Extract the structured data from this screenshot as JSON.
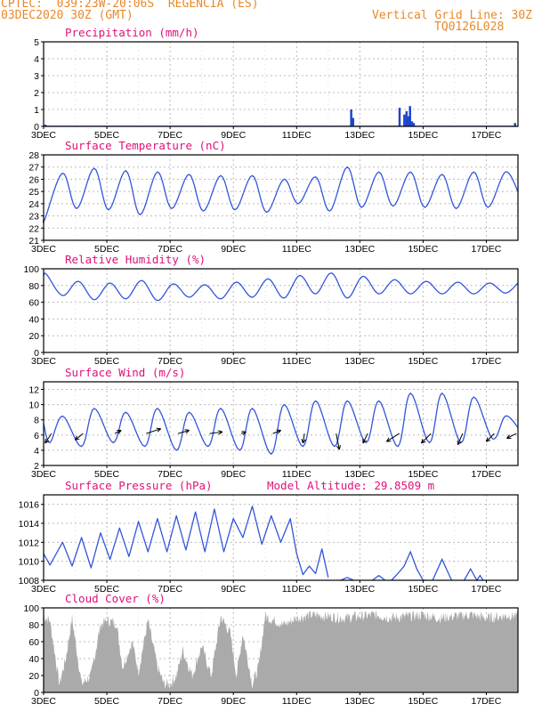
{
  "header": {
    "line1_left": "CPTEC:  039:23W-20:06S  REGENCIA (ES)",
    "line2_left": "03DEC2020 30Z (GMT)",
    "line2_right": "Vertical Grid Line: 30Z",
    "line3_right": "TQ0126L028"
  },
  "colors": {
    "header": "#e8892b",
    "title": "#e0107a",
    "line": "#3355dd",
    "bar": "#2244cc",
    "cloud": "#aaaaaa",
    "arrow": "#000000"
  },
  "chart_data": [
    {
      "type": "bar",
      "title": "Precipitation (mm/h)",
      "ylim": [
        0,
        5
      ],
      "yticks": [
        0,
        1,
        2,
        3,
        4,
        5
      ],
      "x_labels": [
        "3DEC",
        "5DEC",
        "7DEC",
        "9DEC",
        "11DEC",
        "13DEC",
        "15DEC",
        "17DEC"
      ],
      "x_label_days": [
        3,
        5,
        7,
        9,
        11,
        13,
        15,
        17
      ],
      "x_range_days": [
        3.0,
        18.0
      ],
      "grid": true,
      "events": [
        {
          "day": 3.05,
          "value": 0.1
        },
        {
          "day": 12.72,
          "value": 1.0
        },
        {
          "day": 12.78,
          "value": 0.5
        },
        {
          "day": 14.25,
          "value": 1.1
        },
        {
          "day": 14.4,
          "value": 0.7
        },
        {
          "day": 14.47,
          "value": 0.9
        },
        {
          "day": 14.52,
          "value": 0.6
        },
        {
          "day": 14.58,
          "value": 1.2
        },
        {
          "day": 14.64,
          "value": 0.3
        },
        {
          "day": 14.7,
          "value": 0.2
        },
        {
          "day": 17.9,
          "value": 0.2
        }
      ]
    },
    {
      "type": "line",
      "title": "Surface Temperature (nC)",
      "ylim": [
        21,
        28
      ],
      "yticks": [
        21,
        22,
        23,
        24,
        25,
        26,
        27,
        28
      ],
      "x_labels": [
        "3DEC",
        "5DEC",
        "7DEC",
        "9DEC",
        "11DEC",
        "13DEC",
        "15DEC",
        "17DEC"
      ],
      "x_label_days": [
        3,
        5,
        7,
        9,
        11,
        13,
        15,
        17
      ],
      "x_range_days": [
        3.0,
        18.0
      ],
      "grid": true,
      "peaks": [
        {
          "day": 3.6,
          "max": 26.5,
          "min": 22.8
        },
        {
          "day": 4.6,
          "max": 26.9,
          "min": 23.6
        },
        {
          "day": 5.6,
          "max": 26.7,
          "min": 23.5
        },
        {
          "day": 6.6,
          "max": 26.6,
          "min": 23.1
        },
        {
          "day": 7.6,
          "max": 26.4,
          "min": 23.6
        },
        {
          "day": 8.6,
          "max": 26.3,
          "min": 23.4
        },
        {
          "day": 9.6,
          "max": 26.3,
          "min": 23.5
        },
        {
          "day": 10.6,
          "max": 26.0,
          "min": 23.3
        },
        {
          "day": 11.6,
          "max": 26.2,
          "min": 24.0
        },
        {
          "day": 12.6,
          "max": 27.0,
          "min": 23.4
        },
        {
          "day": 13.6,
          "max": 26.6,
          "min": 23.7
        },
        {
          "day": 14.6,
          "max": 26.6,
          "min": 23.8
        },
        {
          "day": 15.6,
          "max": 26.4,
          "min": 23.7
        },
        {
          "day": 16.6,
          "max": 26.6,
          "min": 23.6
        },
        {
          "day": 17.6,
          "max": 26.6,
          "min": 23.7
        }
      ]
    },
    {
      "type": "line",
      "title": "Relative Humidity (%)",
      "ylim": [
        0,
        100
      ],
      "yticks": [
        0,
        20,
        40,
        60,
        80,
        100
      ],
      "x_labels": [
        "3DEC",
        "5DEC",
        "7DEC",
        "9DEC",
        "11DEC",
        "13DEC",
        "15DEC",
        "17DEC"
      ],
      "x_label_days": [
        3,
        5,
        7,
        9,
        11,
        13,
        15,
        17
      ],
      "x_range_days": [
        3.0,
        18.0
      ],
      "grid": true,
      "troughs": [
        {
          "day": 3.6,
          "min": 68,
          "max": 93
        },
        {
          "day": 4.6,
          "min": 63,
          "max": 85
        },
        {
          "day": 5.6,
          "min": 64,
          "max": 83
        },
        {
          "day": 6.6,
          "min": 62,
          "max": 86
        },
        {
          "day": 7.6,
          "min": 66,
          "max": 82
        },
        {
          "day": 8.6,
          "min": 64,
          "max": 81
        },
        {
          "day": 9.6,
          "min": 66,
          "max": 84
        },
        {
          "day": 10.6,
          "min": 65,
          "max": 88
        },
        {
          "day": 11.6,
          "min": 70,
          "max": 92
        },
        {
          "day": 12.6,
          "min": 65,
          "max": 95
        },
        {
          "day": 13.6,
          "min": 70,
          "max": 91
        },
        {
          "day": 14.6,
          "min": 70,
          "max": 87
        },
        {
          "day": 15.6,
          "min": 70,
          "max": 85
        },
        {
          "day": 16.6,
          "min": 70,
          "max": 84
        },
        {
          "day": 17.6,
          "min": 71,
          "max": 83
        }
      ]
    },
    {
      "type": "line",
      "title": "Surface Wind (m/s)",
      "ylim": [
        2,
        13
      ],
      "yticks": [
        2,
        4,
        6,
        8,
        10,
        12
      ],
      "x_labels": [
        "3DEC",
        "5DEC",
        "7DEC",
        "9DEC",
        "11DEC",
        "13DEC",
        "15DEC",
        "17DEC"
      ],
      "x_label_days": [
        3,
        5,
        7,
        9,
        11,
        13,
        15,
        17
      ],
      "x_range_days": [
        3.0,
        18.0
      ],
      "grid": true,
      "cycles": [
        {
          "day": 3.5,
          "min": 5.0,
          "max": 8.5
        },
        {
          "day": 4.5,
          "min": 4.5,
          "max": 9.5
        },
        {
          "day": 5.5,
          "min": 5.0,
          "max": 9.0
        },
        {
          "day": 6.5,
          "min": 4.5,
          "max": 9.5
        },
        {
          "day": 7.5,
          "min": 4.0,
          "max": 9.0
        },
        {
          "day": 8.5,
          "min": 4.5,
          "max": 9.5
        },
        {
          "day": 9.5,
          "min": 4.0,
          "max": 9.5
        },
        {
          "day": 10.5,
          "min": 3.5,
          "max": 10.0
        },
        {
          "day": 11.5,
          "min": 4.5,
          "max": 10.5
        },
        {
          "day": 12.5,
          "min": 4.5,
          "max": 10.5
        },
        {
          "day": 13.5,
          "min": 5.0,
          "max": 10.5
        },
        {
          "day": 14.5,
          "min": 4.5,
          "max": 11.5
        },
        {
          "day": 15.5,
          "min": 5.0,
          "max": 11.5
        },
        {
          "day": 16.5,
          "min": 5.0,
          "max": 11.0
        },
        {
          "day": 17.5,
          "min": 5.5,
          "max": 8.5
        }
      ],
      "vectors": [
        {
          "day": 3.25,
          "u": -2.0,
          "v": -3.0
        },
        {
          "day": 4.25,
          "u": -2.5,
          "v": -2.0
        },
        {
          "day": 5.25,
          "u": 2.0,
          "v": 1.0
        },
        {
          "day": 6.25,
          "u": 4.5,
          "v": 1.5
        },
        {
          "day": 7.25,
          "u": 3.5,
          "v": 1.0
        },
        {
          "day": 8.25,
          "u": 4.0,
          "v": 0.5
        },
        {
          "day": 9.25,
          "u": 1.5,
          "v": 0.5
        },
        {
          "day": 10.25,
          "u": 2.5,
          "v": 1.0
        },
        {
          "day": 11.25,
          "u": -0.5,
          "v": -3.0
        },
        {
          "day": 12.25,
          "u": 1.0,
          "v": -5.0
        },
        {
          "day": 13.25,
          "u": -1.5,
          "v": -3.0
        },
        {
          "day": 14.25,
          "u": -4.0,
          "v": -2.5
        },
        {
          "day": 15.25,
          "u": -3.0,
          "v": -3.0
        },
        {
          "day": 16.25,
          "u": -1.5,
          "v": -3.5
        },
        {
          "day": 17.25,
          "u": -2.5,
          "v": -2.5
        },
        {
          "day": 17.95,
          "u": -3.0,
          "v": -1.5
        }
      ]
    },
    {
      "type": "line",
      "title": "Surface Pressure (hPa)",
      "subtitle": "Model Altitude: 29.8509 m",
      "ylim": [
        1008,
        1017
      ],
      "yticks": [
        1008,
        1010,
        1012,
        1014,
        1016
      ],
      "x_labels": [
        "3DEC",
        "5DEC",
        "7DEC",
        "9DEC",
        "11DEC",
        "13DEC",
        "15DEC",
        "17DEC"
      ],
      "x_label_days": [
        3,
        5,
        7,
        9,
        11,
        13,
        15,
        17
      ],
      "x_range_days": [
        3.0,
        18.0
      ],
      "grid": true,
      "keypoints": [
        [
          3.0,
          1010.8
        ],
        [
          3.2,
          1009.6
        ],
        [
          3.6,
          1012.0
        ],
        [
          3.9,
          1009.5
        ],
        [
          4.2,
          1012.5
        ],
        [
          4.5,
          1009.3
        ],
        [
          4.8,
          1013.0
        ],
        [
          5.1,
          1010.2
        ],
        [
          5.4,
          1013.5
        ],
        [
          5.7,
          1010.5
        ],
        [
          6.0,
          1014.2
        ],
        [
          6.3,
          1011.0
        ],
        [
          6.6,
          1014.5
        ],
        [
          6.9,
          1011.0
        ],
        [
          7.2,
          1014.8
        ],
        [
          7.5,
          1011.2
        ],
        [
          7.8,
          1015.2
        ],
        [
          8.1,
          1011.0
        ],
        [
          8.4,
          1015.5
        ],
        [
          8.7,
          1011.0
        ],
        [
          9.0,
          1014.5
        ],
        [
          9.3,
          1012.5
        ],
        [
          9.6,
          1015.8
        ],
        [
          9.9,
          1011.8
        ],
        [
          10.2,
          1014.8
        ],
        [
          10.5,
          1012.0
        ],
        [
          10.8,
          1014.5
        ],
        [
          11.0,
          1010.8
        ],
        [
          11.2,
          1008.6
        ],
        [
          11.4,
          1009.5
        ],
        [
          11.6,
          1008.7
        ],
        [
          11.8,
          1011.3
        ],
        [
          12.0,
          1008.3
        ]
      ],
      "low_segments": [
        [
          [
            12.4,
            1007.8
          ],
          [
            12.6,
            1008.3
          ],
          [
            12.8,
            1007.8
          ]
        ],
        [
          [
            13.4,
            1007.8
          ],
          [
            13.6,
            1008.5
          ],
          [
            13.8,
            1007.8
          ]
        ],
        [
          [
            14.0,
            1007.8
          ],
          [
            14.2,
            1008.7
          ],
          [
            14.4,
            1009.5
          ],
          [
            14.6,
            1011.0
          ],
          [
            14.8,
            1009.2
          ],
          [
            15.0,
            1008.0
          ],
          [
            15.1,
            1007.8
          ]
        ],
        [
          [
            15.3,
            1007.8
          ],
          [
            15.6,
            1010.2
          ],
          [
            15.9,
            1007.8
          ]
        ],
        [
          [
            16.3,
            1007.8
          ],
          [
            16.5,
            1009.2
          ],
          [
            16.7,
            1008.0
          ],
          [
            16.8,
            1008.5
          ],
          [
            16.9,
            1007.8
          ]
        ]
      ]
    },
    {
      "type": "area",
      "title": "Cloud Cover (%)",
      "ylim": [
        0,
        100
      ],
      "yticks": [
        0,
        20,
        40,
        60,
        80,
        100
      ],
      "x_labels": [
        "3DEC",
        "5DEC",
        "7DEC",
        "9DEC",
        "11DEC",
        "13DEC",
        "15DEC",
        "17DEC"
      ],
      "x_label_days": [
        3,
        5,
        7,
        9,
        11,
        13,
        15,
        17
      ],
      "x_range_days": [
        3.0,
        18.0
      ],
      "grid": true,
      "keypoints": [
        [
          3.0,
          90
        ],
        [
          3.2,
          85
        ],
        [
          3.5,
          10
        ],
        [
          3.7,
          40
        ],
        [
          3.9,
          88
        ],
        [
          4.2,
          10
        ],
        [
          4.5,
          20
        ],
        [
          4.8,
          80
        ],
        [
          5.0,
          85
        ],
        [
          5.3,
          82
        ],
        [
          5.5,
          30
        ],
        [
          5.8,
          60
        ],
        [
          6.0,
          25
        ],
        [
          6.3,
          85
        ],
        [
          6.6,
          30
        ],
        [
          6.8,
          10
        ],
        [
          7.0,
          10
        ],
        [
          7.2,
          20
        ],
        [
          7.4,
          50
        ],
        [
          7.7,
          20
        ],
        [
          8.0,
          55
        ],
        [
          8.3,
          20
        ],
        [
          8.6,
          90
        ],
        [
          8.9,
          70
        ],
        [
          9.1,
          20
        ],
        [
          9.3,
          70
        ],
        [
          9.6,
          10
        ],
        [
          9.8,
          30
        ],
        [
          10.0,
          90
        ],
        [
          10.3,
          85
        ],
        [
          10.6,
          80
        ],
        [
          11.0,
          88
        ],
        [
          11.5,
          92
        ],
        [
          12.0,
          90
        ],
        [
          12.5,
          88
        ],
        [
          13.0,
          90
        ],
        [
          13.5,
          92
        ],
        [
          14.0,
          88
        ],
        [
          14.5,
          90
        ],
        [
          15.0,
          92
        ],
        [
          15.5,
          88
        ],
        [
          16.0,
          90
        ],
        [
          16.5,
          92
        ],
        [
          17.0,
          88
        ],
        [
          17.5,
          90
        ],
        [
          18.0,
          92
        ]
      ]
    }
  ]
}
